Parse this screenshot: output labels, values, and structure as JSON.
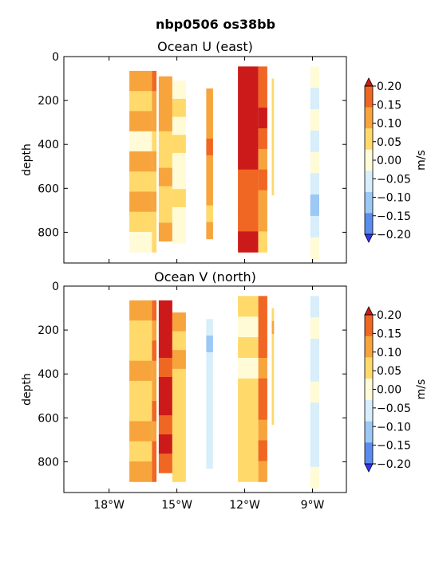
{
  "figure": {
    "suptitle": "nbp0506 os38bb"
  },
  "chart_data": [
    {
      "type": "heatmap",
      "title": "Ocean U (east)",
      "xlabel": "",
      "ylabel": "depth",
      "xlim": [
        -20.0,
        -7.5
      ],
      "ylim": [
        940,
        0
      ],
      "y_ticks": [
        0,
        200,
        400,
        600,
        800
      ],
      "x_ticks": [],
      "grid": false,
      "colorbar": {
        "label": "m/s",
        "levels": [
          -0.2,
          -0.15,
          -0.1,
          -0.05,
          0.0,
          0.05,
          0.1,
          0.15,
          0.2
        ],
        "tick_labels": [
          "0.20",
          "0.15",
          "0.10",
          "0.05",
          "0.00",
          "−0.05",
          "−0.10",
          "−0.15",
          "−0.20"
        ],
        "colors_low_to_high": [
          "#3333ff",
          "#5a8cf0",
          "#9cc8f5",
          "#d8eefa",
          "#fffbd7",
          "#ffd96a",
          "#f7a43c",
          "#f06623",
          "#cc1a1a"
        ],
        "extend": "both"
      },
      "sections": [
        {
          "lon_start": -17.1,
          "lon_end": -16.1,
          "depth_top": 65,
          "depth_bottom": 890,
          "profile": [
            0.05,
            0.0,
            0.05,
            -0.03,
            0.07,
            0.03,
            0.05,
            0.0,
            -0.02
          ]
        },
        {
          "lon_start": -16.1,
          "lon_end": -15.9,
          "depth_top": 65,
          "depth_bottom": 890,
          "profile": [
            0.1,
            0.05,
            0.05,
            0.0,
            0.05,
            0.03,
            0.05,
            0.0,
            0.0
          ]
        },
        {
          "lon_start": -15.8,
          "lon_end": -15.2,
          "depth_top": 90,
          "depth_bottom": 840,
          "profile": [
            0.05,
            0.07,
            0.05,
            0.03,
            0.0,
            0.05,
            0.03,
            0.0,
            0.05
          ]
        },
        {
          "lon_start": -15.2,
          "lon_end": -14.6,
          "depth_top": 110,
          "depth_bottom": 850,
          "profile": [
            -0.03,
            0.0,
            -0.05,
            0.0,
            -0.03,
            -0.05,
            0.0,
            -0.03,
            -0.05
          ]
        },
        {
          "lon_start": -13.7,
          "lon_end": -13.4,
          "depth_top": 145,
          "depth_bottom": 830,
          "profile": [
            0.05,
            0.07,
            0.05,
            0.1,
            0.05,
            0.07,
            0.05,
            0.03,
            0.05
          ]
        },
        {
          "lon_start": -12.3,
          "lon_end": -11.4,
          "depth_top": 45,
          "depth_bottom": 890,
          "profile": [
            0.2,
            0.18,
            0.15,
            0.2,
            0.15,
            0.12,
            0.1,
            0.12,
            0.15
          ]
        },
        {
          "lon_start": -11.4,
          "lon_end": -11.0,
          "depth_top": 45,
          "depth_bottom": 890,
          "profile": [
            0.1,
            0.12,
            0.15,
            0.1,
            0.08,
            0.1,
            0.05,
            0.05,
            0.03
          ]
        },
        {
          "lon_start": -10.8,
          "lon_end": -10.7,
          "depth_top": 100,
          "depth_bottom": 630,
          "profile": [
            0.03,
            0.03,
            0.0,
            0.03,
            0.0,
            0.03,
            0.0,
            0.0,
            0.0
          ]
        },
        {
          "lon_start": -9.1,
          "lon_end": -8.7,
          "depth_top": 45,
          "depth_bottom": 920,
          "profile": [
            -0.05,
            -0.07,
            -0.05,
            -0.1,
            -0.05,
            -0.08,
            -0.12,
            -0.07,
            -0.05
          ]
        }
      ]
    },
    {
      "type": "heatmap",
      "title": "Ocean V (north)",
      "xlabel": "",
      "ylabel": "depth",
      "xlim": [
        -20.0,
        -7.5
      ],
      "ylim": [
        940,
        0
      ],
      "y_ticks": [
        0,
        200,
        400,
        600,
        800
      ],
      "x_ticks": [
        "18°W",
        "15°W",
        "12°W",
        "9°W"
      ],
      "x_tick_values": [
        -18,
        -15,
        -12,
        -9
      ],
      "grid": false,
      "colorbar": {
        "label": "m/s",
        "levels": [
          -0.2,
          -0.15,
          -0.1,
          -0.05,
          0.0,
          0.05,
          0.1,
          0.15,
          0.2
        ],
        "tick_labels": [
          "0.20",
          "0.15",
          "0.10",
          "0.05",
          "0.00",
          "−0.05",
          "−0.10",
          "−0.15",
          "−0.20"
        ],
        "colors_low_to_high": [
          "#3333ff",
          "#5a8cf0",
          "#9cc8f5",
          "#d8eefa",
          "#fffbd7",
          "#ffd96a",
          "#f7a43c",
          "#f06623",
          "#cc1a1a"
        ],
        "extend": "both"
      },
      "sections": [
        {
          "lon_start": -17.1,
          "lon_end": -16.1,
          "depth_top": 65,
          "depth_bottom": 890,
          "profile": [
            0.05,
            0.0,
            0.03,
            0.05,
            0.0,
            0.03,
            0.05,
            0.0,
            0.08
          ]
        },
        {
          "lon_start": -16.1,
          "lon_end": -15.9,
          "depth_top": 65,
          "depth_bottom": 890,
          "profile": [
            0.1,
            0.08,
            0.1,
            0.08,
            0.05,
            0.1,
            0.08,
            0.1,
            0.1
          ]
        },
        {
          "lon_start": -15.8,
          "lon_end": -15.2,
          "depth_top": 65,
          "depth_bottom": 850,
          "profile": [
            0.18,
            0.2,
            0.15,
            0.12,
            0.15,
            0.15,
            0.12,
            0.15,
            0.12
          ]
        },
        {
          "lon_start": -15.2,
          "lon_end": -14.6,
          "depth_top": 120,
          "depth_bottom": 890,
          "profile": [
            0.05,
            0.03,
            0.05,
            0.0,
            0.03,
            0.0,
            0.03,
            0.0,
            0.0
          ]
        },
        {
          "lon_start": -13.7,
          "lon_end": -13.4,
          "depth_top": 150,
          "depth_bottom": 830,
          "profile": [
            -0.1,
            -0.12,
            -0.1,
            -0.08,
            -0.1,
            -0.1,
            -0.08,
            -0.1,
            -0.1
          ]
        },
        {
          "lon_start": -12.3,
          "lon_end": -11.4,
          "depth_top": 45,
          "depth_bottom": 890,
          "profile": [
            0.0,
            -0.03,
            0.0,
            -0.03,
            0.0,
            0.03,
            0.0,
            0.03,
            0.0
          ]
        },
        {
          "lon_start": -11.4,
          "lon_end": -11.0,
          "depth_top": 45,
          "depth_bottom": 890,
          "profile": [
            0.1,
            0.12,
            0.1,
            0.08,
            0.1,
            0.12,
            0.08,
            0.1,
            0.08
          ]
        },
        {
          "lon_start": -10.8,
          "lon_end": -10.7,
          "depth_top": 100,
          "depth_bottom": 630,
          "profile": [
            0.03,
            0.05,
            0.03,
            0.0,
            0.03,
            0.0,
            0.0,
            0.03,
            0.0
          ]
        },
        {
          "lon_start": -9.1,
          "lon_end": -8.7,
          "depth_top": 45,
          "depth_bottom": 920,
          "profile": [
            -0.08,
            -0.05,
            -0.1,
            -0.07,
            -0.05,
            -0.08,
            -0.1,
            -0.07,
            -0.05
          ]
        }
      ]
    }
  ]
}
